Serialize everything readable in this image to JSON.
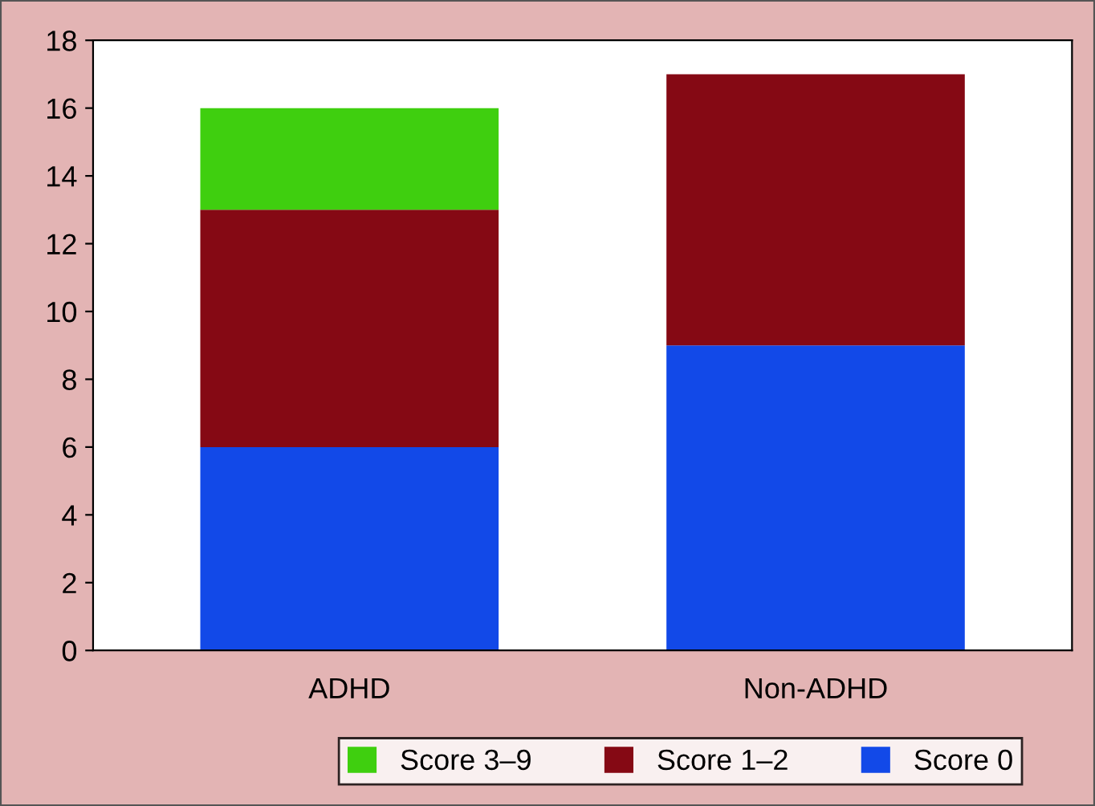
{
  "chart_data": {
    "type": "bar",
    "stacked": true,
    "categories": [
      "ADHD",
      "Non-ADHD"
    ],
    "series": [
      {
        "name": "Score 0",
        "color": "#1249e8",
        "values": [
          6,
          9
        ]
      },
      {
        "name": "Score 1–2",
        "color": "#850914",
        "values": [
          7,
          8
        ]
      },
      {
        "name": "Score 3–9",
        "color": "#3fcf0f",
        "values": [
          3,
          0
        ]
      }
    ],
    "ylim": [
      0,
      18
    ],
    "yticks": [
      0,
      2,
      4,
      6,
      8,
      10,
      12,
      14,
      16,
      18
    ],
    "grid": false,
    "legend": "bottom"
  }
}
